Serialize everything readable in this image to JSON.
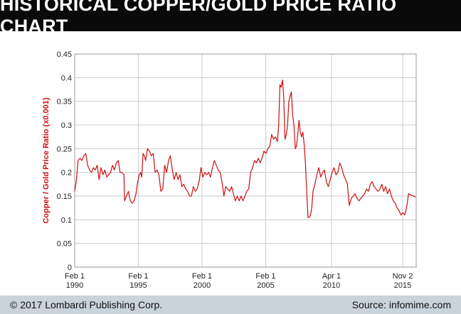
{
  "header": {
    "title": "HISTORICAL COPPER/GOLD PRICE RATIO CHART"
  },
  "footer": {
    "copyright": "© 2017 Lombardi Publishing Corp.",
    "source": "Source: infomime.com"
  },
  "colors": {
    "line": "#cc1010",
    "axis_label": "#cc1010",
    "grid": "#cccccc",
    "title_bg": "#0a0a0a",
    "footer_bg": "#c9d3dc"
  },
  "chart_data": {
    "type": "line",
    "title": "",
    "xlabel": "",
    "ylabel": "Copper / Gold Price Ratio (x0.001)",
    "ylim": [
      0,
      0.45
    ],
    "xlim": [
      1990.083,
      2016.9
    ],
    "grid": true,
    "yticks": [
      "0",
      "0.05",
      "0.1",
      "0.15",
      "0.2",
      "0.25",
      "0.3",
      "0.35",
      "0.4",
      "0.45"
    ],
    "xticks": [
      {
        "line1": "Feb 1",
        "line2": "1990",
        "x": 1990.083
      },
      {
        "line1": "Feb 1",
        "line2": "1995",
        "x": 1995.083
      },
      {
        "line1": "Feb 1",
        "line2": "2000",
        "x": 2000.083
      },
      {
        "line1": "Feb 1",
        "line2": "2005",
        "x": 2005.083
      },
      {
        "line1": "Apr 1",
        "line2": "2010",
        "x": 2010.25
      },
      {
        "line1": "Nov 2",
        "line2": "2015",
        "x": 2015.84
      }
    ],
    "series": [
      {
        "points": [
          [
            1990.08,
            0.16
          ],
          [
            1990.2,
            0.18
          ],
          [
            1990.35,
            0.225
          ],
          [
            1990.5,
            0.23
          ],
          [
            1990.65,
            0.225
          ],
          [
            1990.8,
            0.235
          ],
          [
            1990.95,
            0.24
          ],
          [
            1991.1,
            0.215
          ],
          [
            1991.25,
            0.205
          ],
          [
            1991.4,
            0.2
          ],
          [
            1991.55,
            0.21
          ],
          [
            1991.7,
            0.205
          ],
          [
            1991.85,
            0.215
          ],
          [
            1992.0,
            0.185
          ],
          [
            1992.15,
            0.21
          ],
          [
            1992.3,
            0.195
          ],
          [
            1992.45,
            0.205
          ],
          [
            1992.6,
            0.19
          ],
          [
            1992.75,
            0.195
          ],
          [
            1992.9,
            0.2
          ],
          [
            1993.05,
            0.215
          ],
          [
            1993.2,
            0.205
          ],
          [
            1993.35,
            0.22
          ],
          [
            1993.5,
            0.225
          ],
          [
            1993.65,
            0.2
          ],
          [
            1993.8,
            0.2
          ],
          [
            1993.95,
            0.195
          ],
          [
            1994.0,
            0.14
          ],
          [
            1994.15,
            0.15
          ],
          [
            1994.3,
            0.16
          ],
          [
            1994.45,
            0.14
          ],
          [
            1994.6,
            0.135
          ],
          [
            1994.75,
            0.14
          ],
          [
            1994.9,
            0.155
          ],
          [
            1995.0,
            0.175
          ],
          [
            1995.15,
            0.195
          ],
          [
            1995.25,
            0.2
          ],
          [
            1995.35,
            0.19
          ],
          [
            1995.45,
            0.24
          ],
          [
            1995.55,
            0.235
          ],
          [
            1995.65,
            0.225
          ],
          [
            1995.8,
            0.25
          ],
          [
            1995.95,
            0.245
          ],
          [
            1996.1,
            0.235
          ],
          [
            1996.25,
            0.24
          ],
          [
            1996.4,
            0.2
          ],
          [
            1996.55,
            0.205
          ],
          [
            1996.7,
            0.195
          ],
          [
            1996.85,
            0.16
          ],
          [
            1997.0,
            0.165
          ],
          [
            1997.15,
            0.215
          ],
          [
            1997.3,
            0.2
          ],
          [
            1997.45,
            0.225
          ],
          [
            1997.6,
            0.235
          ],
          [
            1997.75,
            0.205
          ],
          [
            1997.9,
            0.185
          ],
          [
            1998.05,
            0.2
          ],
          [
            1998.2,
            0.185
          ],
          [
            1998.35,
            0.195
          ],
          [
            1998.5,
            0.17
          ],
          [
            1998.65,
            0.175
          ],
          [
            1998.8,
            0.165
          ],
          [
            1998.95,
            0.16
          ],
          [
            1999.1,
            0.15
          ],
          [
            1999.25,
            0.15
          ],
          [
            1999.4,
            0.17
          ],
          [
            1999.55,
            0.16
          ],
          [
            1999.7,
            0.165
          ],
          [
            1999.85,
            0.18
          ],
          [
            2000.0,
            0.21
          ],
          [
            2000.15,
            0.19
          ],
          [
            2000.3,
            0.2
          ],
          [
            2000.45,
            0.195
          ],
          [
            2000.6,
            0.2
          ],
          [
            2000.75,
            0.19
          ],
          [
            2000.9,
            0.21
          ],
          [
            2001.05,
            0.225
          ],
          [
            2001.2,
            0.215
          ],
          [
            2001.35,
            0.205
          ],
          [
            2001.5,
            0.2
          ],
          [
            2001.65,
            0.18
          ],
          [
            2001.8,
            0.15
          ],
          [
            2001.95,
            0.17
          ],
          [
            2002.1,
            0.165
          ],
          [
            2002.25,
            0.16
          ],
          [
            2002.4,
            0.17
          ],
          [
            2002.55,
            0.155
          ],
          [
            2002.7,
            0.14
          ],
          [
            2002.85,
            0.15
          ],
          [
            2003.0,
            0.14
          ],
          [
            2003.15,
            0.15
          ],
          [
            2003.3,
            0.14
          ],
          [
            2003.45,
            0.15
          ],
          [
            2003.6,
            0.16
          ],
          [
            2003.75,
            0.165
          ],
          [
            2003.9,
            0.2
          ],
          [
            2004.05,
            0.21
          ],
          [
            2004.2,
            0.225
          ],
          [
            2004.35,
            0.22
          ],
          [
            2004.5,
            0.23
          ],
          [
            2004.65,
            0.22
          ],
          [
            2004.8,
            0.23
          ],
          [
            2004.95,
            0.245
          ],
          [
            2005.1,
            0.24
          ],
          [
            2005.25,
            0.25
          ],
          [
            2005.4,
            0.255
          ],
          [
            2005.55,
            0.28
          ],
          [
            2005.7,
            0.27
          ],
          [
            2005.85,
            0.275
          ],
          [
            2006.0,
            0.265
          ],
          [
            2006.1,
            0.3
          ],
          [
            2006.2,
            0.385
          ],
          [
            2006.3,
            0.38
          ],
          [
            2006.4,
            0.395
          ],
          [
            2006.5,
            0.36
          ],
          [
            2006.6,
            0.27
          ],
          [
            2006.7,
            0.28
          ],
          [
            2006.8,
            0.3
          ],
          [
            2006.9,
            0.35
          ],
          [
            2007.0,
            0.36
          ],
          [
            2007.1,
            0.37
          ],
          [
            2007.2,
            0.32
          ],
          [
            2007.3,
            0.3
          ],
          [
            2007.4,
            0.25
          ],
          [
            2007.5,
            0.255
          ],
          [
            2007.6,
            0.28
          ],
          [
            2007.7,
            0.31
          ],
          [
            2007.8,
            0.285
          ],
          [
            2007.9,
            0.275
          ],
          [
            2008.0,
            0.285
          ],
          [
            2008.1,
            0.26
          ],
          [
            2008.2,
            0.22
          ],
          [
            2008.3,
            0.16
          ],
          [
            2008.4,
            0.105
          ],
          [
            2008.5,
            0.105
          ],
          [
            2008.6,
            0.11
          ],
          [
            2008.7,
            0.125
          ],
          [
            2008.8,
            0.16
          ],
          [
            2008.95,
            0.175
          ],
          [
            2009.1,
            0.195
          ],
          [
            2009.25,
            0.21
          ],
          [
            2009.4,
            0.19
          ],
          [
            2009.55,
            0.2
          ],
          [
            2009.7,
            0.205
          ],
          [
            2009.85,
            0.18
          ],
          [
            2010.0,
            0.17
          ],
          [
            2010.15,
            0.185
          ],
          [
            2010.3,
            0.2
          ],
          [
            2010.45,
            0.21
          ],
          [
            2010.6,
            0.195
          ],
          [
            2010.75,
            0.2
          ],
          [
            2010.9,
            0.22
          ],
          [
            2011.05,
            0.21
          ],
          [
            2011.2,
            0.195
          ],
          [
            2011.35,
            0.185
          ],
          [
            2011.5,
            0.175
          ],
          [
            2011.65,
            0.13
          ],
          [
            2011.8,
            0.145
          ],
          [
            2011.95,
            0.15
          ],
          [
            2012.1,
            0.155
          ],
          [
            2012.25,
            0.145
          ],
          [
            2012.4,
            0.14
          ],
          [
            2012.55,
            0.145
          ],
          [
            2012.7,
            0.15
          ],
          [
            2012.85,
            0.155
          ],
          [
            2013.0,
            0.165
          ],
          [
            2013.15,
            0.16
          ],
          [
            2013.3,
            0.175
          ],
          [
            2013.45,
            0.18
          ],
          [
            2013.6,
            0.17
          ],
          [
            2013.75,
            0.165
          ],
          [
            2013.9,
            0.16
          ],
          [
            2014.05,
            0.165
          ],
          [
            2014.2,
            0.175
          ],
          [
            2014.35,
            0.16
          ],
          [
            2014.5,
            0.17
          ],
          [
            2014.65,
            0.155
          ],
          [
            2014.8,
            0.165
          ],
          [
            2014.95,
            0.15
          ],
          [
            2015.1,
            0.14
          ],
          [
            2015.25,
            0.135
          ],
          [
            2015.4,
            0.125
          ],
          [
            2015.55,
            0.12
          ],
          [
            2015.7,
            0.11
          ],
          [
            2015.85,
            0.115
          ],
          [
            2016.0,
            0.11
          ],
          [
            2016.1,
            0.12
          ],
          [
            2016.2,
            0.135
          ],
          [
            2016.3,
            0.155
          ],
          [
            2016.5,
            0.152
          ],
          [
            2016.7,
            0.15
          ],
          [
            2016.85,
            0.148
          ]
        ]
      }
    ]
  }
}
